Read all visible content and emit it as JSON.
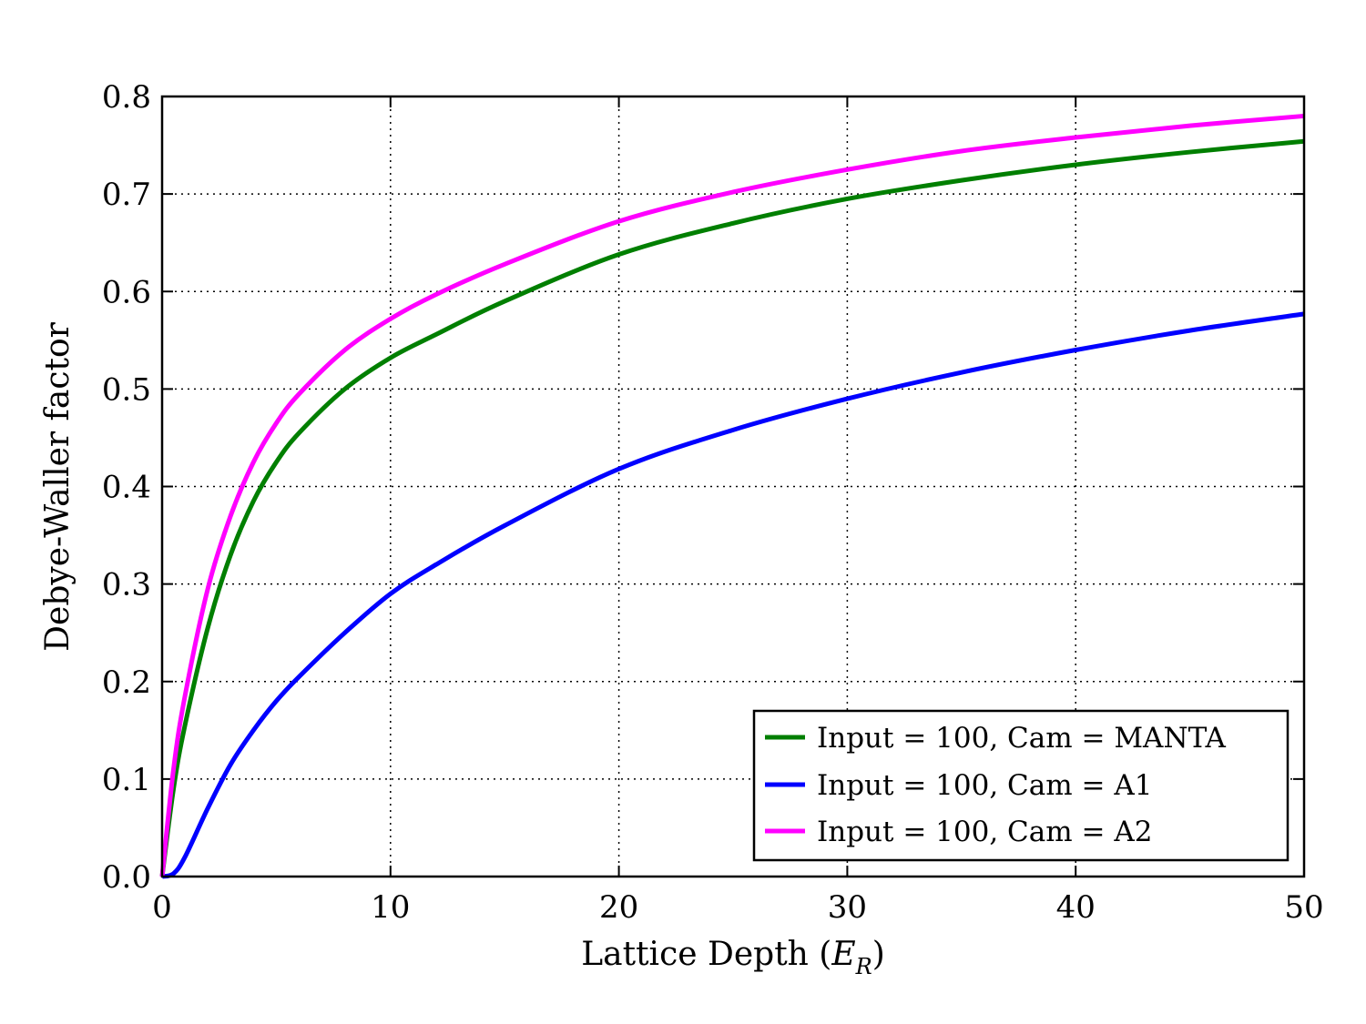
{
  "chart_data": {
    "type": "line",
    "xlabel": "Lattice Depth (",
    "xlabel_math": "E",
    "xlabel_sub": "R",
    "xlabel_close": ")",
    "ylabel": "Debye-Waller factor",
    "xlim": [
      0,
      50
    ],
    "ylim": [
      0,
      0.8
    ],
    "x_ticks": [
      0,
      10,
      20,
      30,
      40,
      50
    ],
    "x_tick_labels": [
      "0",
      "10",
      "20",
      "30",
      "40",
      "50"
    ],
    "y_ticks": [
      0,
      0.1,
      0.2,
      0.3,
      0.4,
      0.5,
      0.6,
      0.7,
      0.8
    ],
    "y_tick_labels": [
      "0.0",
      "0.1",
      "0.2",
      "0.3",
      "0.4",
      "0.5",
      "0.6",
      "0.7",
      "0.8"
    ],
    "grid": true,
    "legend_position": "lower right",
    "x": [
      0,
      0.5,
      1,
      2,
      3,
      4,
      5,
      6,
      8,
      10,
      12,
      15,
      20,
      25,
      30,
      35,
      40,
      45,
      50
    ],
    "series": [
      {
        "name": "Input = 100, Cam = MANTA",
        "color": "#007f00",
        "values": [
          0,
          0.09,
          0.155,
          0.255,
          0.33,
          0.385,
          0.425,
          0.455,
          0.5,
          0.532,
          0.556,
          0.59,
          0.638,
          0.67,
          0.695,
          0.714,
          0.73,
          0.743,
          0.754
        ]
      },
      {
        "name": "Input = 100, Cam = A1",
        "color": "#0000ff",
        "values": [
          0,
          0.003,
          0.02,
          0.07,
          0.115,
          0.15,
          0.18,
          0.205,
          0.25,
          0.29,
          0.32,
          0.36,
          0.418,
          0.458,
          0.49,
          0.517,
          0.54,
          0.56,
          0.577
        ]
      },
      {
        "name": "Input = 100, Cam = A2",
        "color": "#ff00ff",
        "values": [
          0,
          0.11,
          0.185,
          0.295,
          0.37,
          0.425,
          0.465,
          0.495,
          0.54,
          0.572,
          0.597,
          0.628,
          0.672,
          0.702,
          0.725,
          0.744,
          0.758,
          0.77,
          0.78
        ]
      }
    ]
  }
}
